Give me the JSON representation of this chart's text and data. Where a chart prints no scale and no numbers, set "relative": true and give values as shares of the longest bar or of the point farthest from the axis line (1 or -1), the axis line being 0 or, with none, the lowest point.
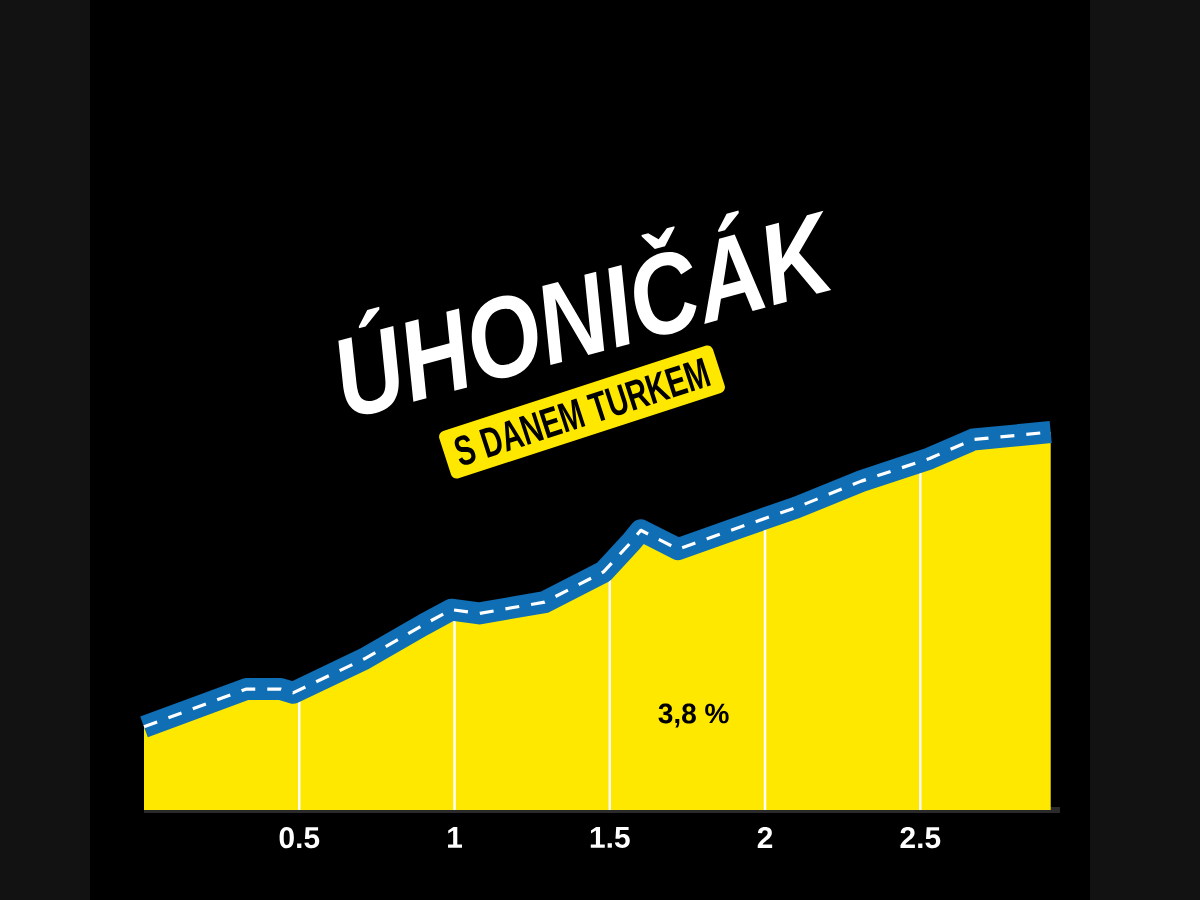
{
  "chart_data": {
    "type": "area",
    "title": "ÚHONIČÁK",
    "subtitle": "S DANEM TURKEM",
    "annotations": [
      "3,8 %"
    ],
    "relative": true,
    "x": [
      0,
      0.33,
      0.44,
      0.48,
      0.71,
      0.9,
      0.99,
      1.08,
      1.29,
      1.48,
      1.57,
      1.6,
      1.72,
      1.89,
      2.1,
      2.31,
      2.53,
      2.67,
      2.92
    ],
    "series": [
      {
        "color": "#ffe800",
        "values": [
          0.22,
          0.32,
          0.32,
          0.31,
          0.4,
          0.49,
          0.53,
          0.52,
          0.55,
          0.63,
          0.71,
          0.74,
          0.69,
          0.74,
          0.8,
          0.87,
          0.93,
          0.98,
          1.0
        ]
      },
      {
        "type": "line",
        "color": "#0f6eb4",
        "values": [
          0.22,
          0.32,
          0.32,
          0.31,
          0.4,
          0.49,
          0.53,
          0.52,
          0.55,
          0.63,
          0.71,
          0.74,
          0.69,
          0.74,
          0.8,
          0.87,
          0.93,
          0.98,
          1.0
        ]
      }
    ],
    "xlim": [
      0,
      2.95
    ],
    "xticks": [
      0.5,
      1,
      1.5,
      2,
      2.5
    ],
    "grid": "x"
  }
}
